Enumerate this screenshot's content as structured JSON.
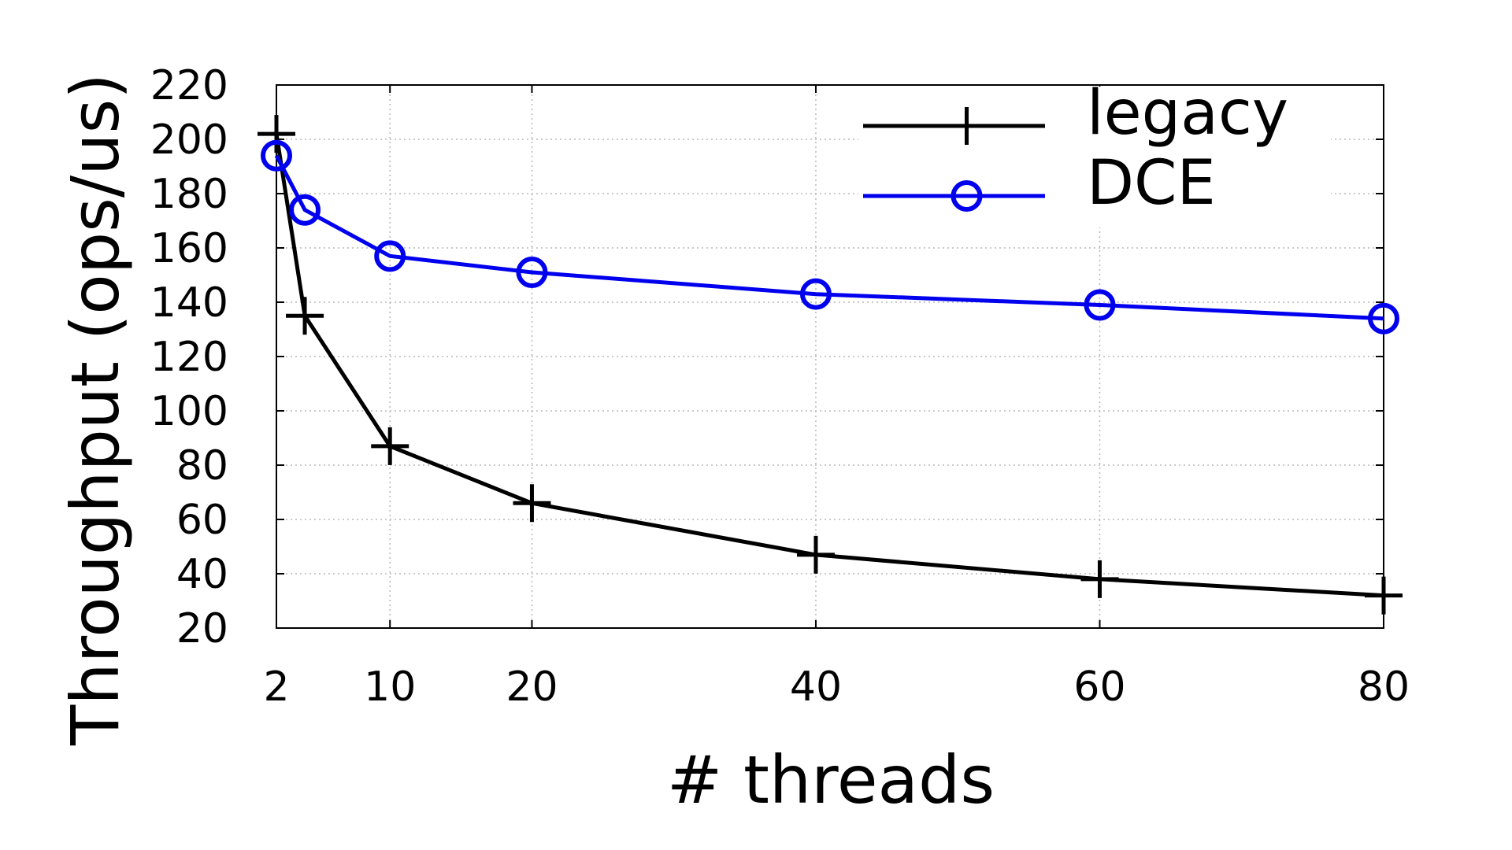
{
  "chart_data": {
    "type": "line",
    "xlabel": "# threads",
    "ylabel": "Throughput (ops/us)",
    "xlim": [
      2,
      80
    ],
    "ylim": [
      20,
      220
    ],
    "xticks": [
      2,
      10,
      20,
      40,
      60,
      80
    ],
    "yticks": [
      20,
      40,
      60,
      80,
      100,
      120,
      140,
      160,
      180,
      200,
      220
    ],
    "grid": true,
    "legend_position": "top-right",
    "series": [
      {
        "name": "legacy",
        "color": "#000000",
        "marker": "plus",
        "x": [
          2,
          4,
          10,
          20,
          40,
          60,
          80
        ],
        "y": [
          202,
          135,
          87,
          66,
          47,
          38,
          32
        ]
      },
      {
        "name": "DCE",
        "color": "#0000ee",
        "marker": "circle",
        "x": [
          2,
          4,
          10,
          20,
          40,
          60,
          80
        ],
        "y": [
          194,
          174,
          157,
          151,
          143,
          139,
          134
        ]
      }
    ]
  }
}
